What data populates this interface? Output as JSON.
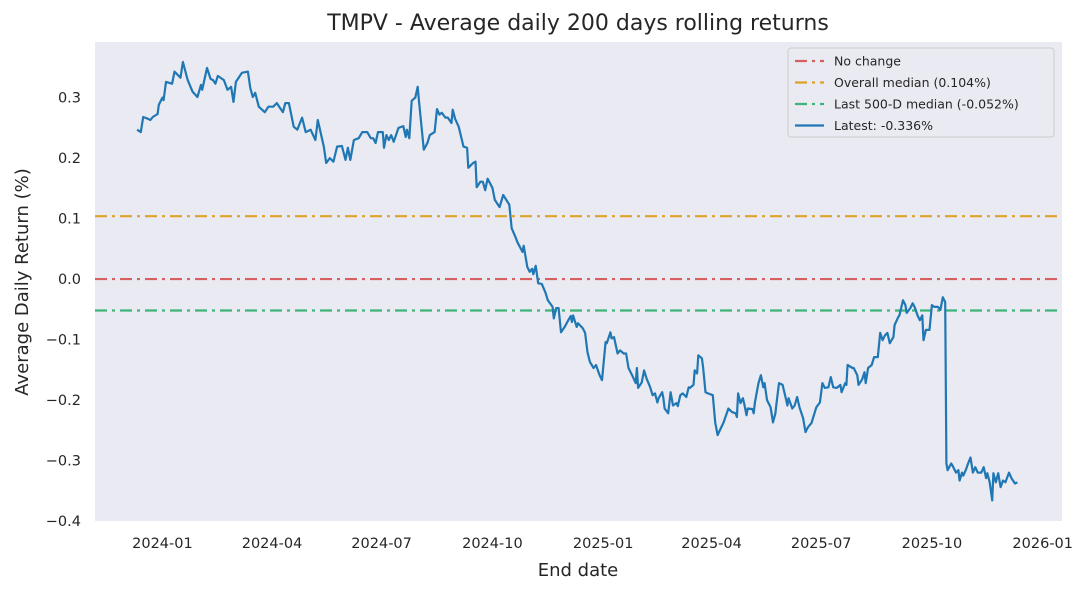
{
  "chart_data": {
    "type": "line",
    "title": "TMPV - Average daily 200 days rolling returns",
    "xlabel": "End date",
    "ylabel": "Average Daily Return (%)",
    "xlim": [
      "2023-11-06",
      "2026-01-17"
    ],
    "ylim": [
      -0.4,
      0.392
    ],
    "grid": false,
    "legend_position": "top-right",
    "x_ticks": [
      {
        "date": "2024-01-01",
        "label": "2024-01"
      },
      {
        "date": "2024-04-01",
        "label": "2024-04"
      },
      {
        "date": "2024-07-01",
        "label": "2024-07"
      },
      {
        "date": "2024-10-01",
        "label": "2024-10"
      },
      {
        "date": "2025-01-01",
        "label": "2025-01"
      },
      {
        "date": "2025-04-01",
        "label": "2025-04"
      },
      {
        "date": "2025-07-01",
        "label": "2025-07"
      },
      {
        "date": "2025-10-01",
        "label": "2025-10"
      },
      {
        "date": "2026-01-01",
        "label": "2026-01"
      }
    ],
    "y_ticks": [
      {
        "value": 0.3,
        "label": "0.3"
      },
      {
        "value": 0.2,
        "label": "0.2"
      },
      {
        "value": 0.1,
        "label": "0.1"
      },
      {
        "value": 0.0,
        "label": "0.0"
      },
      {
        "value": -0.1,
        "label": "−0.1"
      },
      {
        "value": -0.2,
        "label": "−0.2"
      },
      {
        "value": -0.3,
        "label": "−0.3"
      },
      {
        "value": -0.4,
        "label": "−0.4"
      }
    ],
    "hlines": [
      {
        "name": "No change",
        "value": 0.0,
        "color": "#d65f5f",
        "style": "dashdot"
      },
      {
        "name": "Overall median (0.104%)",
        "value": 0.104,
        "color": "#dea32a",
        "style": "dashdot"
      },
      {
        "name": "Last 500-D median (-0.052%)",
        "value": -0.052,
        "color": "#3fb47a",
        "style": "dashdot"
      }
    ],
    "series": [
      {
        "name": "Latest: -0.336%",
        "color": "#1f77b4",
        "x": [
          "2023-12-11",
          "2023-12-14",
          "2023-12-16",
          "2023-12-20",
          "2023-12-22",
          "2023-12-24",
          "2023-12-28",
          "2023-12-29",
          "2024-01-01",
          "2024-01-02",
          "2024-01-04",
          "2024-01-09",
          "2024-01-11",
          "2024-01-16",
          "2024-01-18",
          "2024-01-22",
          "2024-01-26",
          "2024-01-30",
          "2024-02-02",
          "2024-02-03",
          "2024-02-07",
          "2024-02-10",
          "2024-02-12",
          "2024-02-14",
          "2024-02-16",
          "2024-02-21",
          "2024-02-24",
          "2024-02-27",
          "2024-02-29",
          "2024-03-02",
          "2024-03-07",
          "2024-03-12",
          "2024-03-14",
          "2024-03-16",
          "2024-03-18",
          "2024-03-21",
          "2024-03-26",
          "2024-03-29",
          "2024-04-02",
          "2024-04-05",
          "2024-04-10",
          "2024-04-12",
          "2024-04-15",
          "2024-04-19",
          "2024-04-22",
          "2024-04-26",
          "2024-04-29",
          "2024-05-03",
          "2024-05-07",
          "2024-05-09",
          "2024-05-14",
          "2024-05-16",
          "2024-05-19",
          "2024-05-22",
          "2024-05-25",
          "2024-05-29",
          "2024-06-01",
          "2024-06-03",
          "2024-06-05",
          "2024-06-08",
          "2024-06-12",
          "2024-06-15",
          "2024-06-19",
          "2024-06-22",
          "2024-06-24",
          "2024-06-26",
          "2024-06-28",
          "2024-07-02",
          "2024-07-03",
          "2024-07-05",
          "2024-07-07",
          "2024-07-09",
          "2024-07-11",
          "2024-07-15",
          "2024-07-19",
          "2024-07-21",
          "2024-07-22",
          "2024-07-24",
          "2024-07-26",
          "2024-07-29",
          "2024-07-31",
          "2024-08-01",
          "2024-08-05",
          "2024-08-08",
          "2024-08-10",
          "2024-08-14",
          "2024-08-16",
          "2024-08-18",
          "2024-08-20",
          "2024-08-23",
          "2024-08-25",
          "2024-08-28",
          "2024-08-29",
          "2024-08-31",
          "2024-09-03",
          "2024-09-07",
          "2024-09-10",
          "2024-09-11",
          "2024-09-15",
          "2024-09-17",
          "2024-09-18",
          "2024-09-21",
          "2024-09-23",
          "2024-09-25",
          "2024-09-27",
          "2024-10-01",
          "2024-10-03",
          "2024-10-07",
          "2024-10-10",
          "2024-10-15",
          "2024-10-17",
          "2024-10-20",
          "2024-10-22",
          "2024-10-26",
          "2024-10-27",
          "2024-10-30",
          "2024-11-01",
          "2024-11-03",
          "2024-11-04",
          "2024-11-06",
          "2024-11-08",
          "2024-11-11",
          "2024-11-14",
          "2024-11-16",
          "2024-11-20",
          "2024-11-21",
          "2024-11-23",
          "2024-11-25",
          "2024-11-27",
          "2024-11-30",
          "2024-12-03",
          "2024-12-05",
          "2024-12-06",
          "2024-12-07",
          "2024-12-10",
          "2024-12-11",
          "2024-12-15",
          "2024-12-17",
          "2024-12-19",
          "2024-12-21",
          "2024-12-24",
          "2024-12-26",
          "2024-12-29",
          "2024-12-31",
          "2025-01-03",
          "2025-01-04",
          "2025-01-07",
          "2025-01-08",
          "2025-01-10",
          "2025-01-13",
          "2025-01-15",
          "2025-01-18",
          "2025-01-20",
          "2025-01-22",
          "2025-01-25",
          "2025-01-28",
          "2025-01-29",
          "2025-01-30",
          "2025-02-02",
          "2025-02-04",
          "2025-02-06",
          "2025-02-09",
          "2025-02-11",
          "2025-02-13",
          "2025-02-15",
          "2025-02-16",
          "2025-02-19",
          "2025-02-20",
          "2025-02-21",
          "2025-02-24",
          "2025-02-26",
          "2025-02-28",
          "2025-03-03",
          "2025-03-04",
          "2025-03-06",
          "2025-03-08",
          "2025-03-11",
          "2025-03-13",
          "2025-03-14",
          "2025-03-17",
          "2025-03-18",
          "2025-03-20",
          "2025-03-21",
          "2025-03-24",
          "2025-03-25",
          "2025-03-27",
          "2025-03-29",
          "2025-04-02",
          "2025-04-04",
          "2025-04-06",
          "2025-04-11",
          "2025-04-15",
          "2025-04-18",
          "2025-04-21",
          "2025-04-22",
          "2025-04-23",
          "2025-04-25",
          "2025-04-27",
          "2025-04-28",
          "2025-04-30",
          "2025-05-01",
          "2025-05-05",
          "2025-05-06",
          "2025-05-07",
          "2025-05-10",
          "2025-05-12",
          "2025-05-14",
          "2025-05-15",
          "2025-05-17",
          "2025-05-20",
          "2025-05-22",
          "2025-05-24",
          "2025-05-25",
          "2025-05-27",
          "2025-05-30",
          "2025-06-02",
          "2025-06-03",
          "2025-06-04",
          "2025-06-07",
          "2025-06-09",
          "2025-06-11",
          "2025-06-13",
          "2025-06-16",
          "2025-06-18",
          "2025-06-20",
          "2025-06-23",
          "2025-06-27",
          "2025-06-30",
          "2025-07-02",
          "2025-07-04",
          "2025-07-07",
          "2025-07-09",
          "2025-07-11",
          "2025-07-14",
          "2025-07-17",
          "2025-07-18",
          "2025-07-21",
          "2025-07-22",
          "2025-07-23",
          "2025-07-27",
          "2025-07-28",
          "2025-07-31",
          "2025-08-01",
          "2025-08-04",
          "2025-08-06",
          "2025-08-07",
          "2025-08-09",
          "2025-08-12",
          "2025-08-14",
          "2025-08-17",
          "2025-08-19",
          "2025-08-21",
          "2025-08-23",
          "2025-08-25",
          "2025-08-27",
          "2025-08-30",
          "2025-08-31",
          "2025-09-03",
          "2025-09-04",
          "2025-09-07",
          "2025-09-09",
          "2025-09-10",
          "2025-09-13",
          "2025-09-15",
          "2025-09-17",
          "2025-09-19",
          "2025-09-21",
          "2025-09-23",
          "2025-09-24",
          "2025-09-26",
          "2025-09-29",
          "2025-10-01",
          "2025-10-03",
          "2025-10-06",
          "2025-10-08",
          "2025-10-10",
          "2025-10-12",
          "2025-10-13",
          "2025-10-14",
          "2025-10-17",
          "2025-10-18",
          "2025-10-21",
          "2025-10-23",
          "2025-10-24",
          "2025-10-26",
          "2025-10-27",
          "2025-10-29",
          "2025-10-31",
          "2025-11-02",
          "2025-11-04",
          "2025-11-06",
          "2025-11-08",
          "2025-11-11",
          "2025-11-13",
          "2025-11-15",
          "2025-11-16",
          "2025-11-18",
          "2025-11-20",
          "2025-11-21",
          "2025-11-23",
          "2025-11-25",
          "2025-11-27",
          "2025-11-29",
          "2025-12-01",
          "2025-12-04",
          "2025-12-06",
          "2025-12-09",
          "2025-12-11"
        ],
        "y": [
          0.247,
          0.243,
          0.268,
          0.265,
          0.263,
          0.268,
          0.273,
          0.288,
          0.3,
          0.296,
          0.326,
          0.323,
          0.343,
          0.333,
          0.359,
          0.329,
          0.31,
          0.301,
          0.321,
          0.313,
          0.349,
          0.331,
          0.329,
          0.323,
          0.336,
          0.329,
          0.313,
          0.318,
          0.293,
          0.326,
          0.341,
          0.343,
          0.316,
          0.301,
          0.308,
          0.285,
          0.276,
          0.285,
          0.285,
          0.291,
          0.276,
          0.291,
          0.291,
          0.252,
          0.247,
          0.267,
          0.243,
          0.247,
          0.23,
          0.263,
          0.219,
          0.192,
          0.2,
          0.194,
          0.219,
          0.22,
          0.197,
          0.217,
          0.197,
          0.23,
          0.233,
          0.243,
          0.243,
          0.233,
          0.233,
          0.225,
          0.243,
          0.243,
          0.217,
          0.238,
          0.23,
          0.238,
          0.227,
          0.25,
          0.253,
          0.235,
          0.247,
          0.233,
          0.295,
          0.3,
          0.318,
          0.296,
          0.214,
          0.225,
          0.238,
          0.243,
          0.281,
          0.272,
          0.275,
          0.267,
          0.267,
          0.258,
          0.28,
          0.265,
          0.252,
          0.219,
          0.217,
          0.184,
          0.192,
          0.194,
          0.152,
          0.161,
          0.161,
          0.147,
          0.166,
          0.151,
          0.131,
          0.119,
          0.139,
          0.123,
          0.084,
          0.07,
          0.06,
          0.045,
          0.055,
          0.02,
          0.012,
          0.017,
          0.008,
          0.022,
          -0.007,
          -0.008,
          -0.022,
          -0.035,
          -0.046,
          -0.065,
          -0.048,
          -0.048,
          -0.088,
          -0.079,
          -0.068,
          -0.061,
          -0.071,
          -0.06,
          -0.079,
          -0.073,
          -0.081,
          -0.089,
          -0.121,
          -0.137,
          -0.147,
          -0.142,
          -0.159,
          -0.167,
          -0.104,
          -0.106,
          -0.088,
          -0.098,
          -0.096,
          -0.123,
          -0.118,
          -0.123,
          -0.123,
          -0.147,
          -0.159,
          -0.172,
          -0.147,
          -0.18,
          -0.171,
          -0.151,
          -0.164,
          -0.179,
          -0.192,
          -0.189,
          -0.204,
          -0.197,
          -0.187,
          -0.197,
          -0.214,
          -0.222,
          -0.187,
          -0.209,
          -0.205,
          -0.21,
          -0.192,
          -0.189,
          -0.195,
          -0.179,
          -0.18,
          -0.175,
          -0.151,
          -0.156,
          -0.126,
          -0.131,
          -0.146,
          -0.187,
          -0.189,
          -0.192,
          -0.237,
          -0.258,
          -0.237,
          -0.214,
          -0.22,
          -0.222,
          -0.228,
          -0.189,
          -0.205,
          -0.197,
          -0.205,
          -0.225,
          -0.214,
          -0.215,
          -0.222,
          -0.204,
          -0.172,
          -0.159,
          -0.179,
          -0.172,
          -0.2,
          -0.212,
          -0.237,
          -0.222,
          -0.204,
          -0.172,
          -0.175,
          -0.2,
          -0.209,
          -0.197,
          -0.214,
          -0.209,
          -0.195,
          -0.212,
          -0.23,
          -0.253,
          -0.245,
          -0.238,
          -0.212,
          -0.204,
          -0.172,
          -0.18,
          -0.179,
          -0.162,
          -0.179,
          -0.18,
          -0.175,
          -0.187,
          -0.172,
          -0.175,
          -0.142,
          -0.147,
          -0.147,
          -0.159,
          -0.175,
          -0.166,
          -0.154,
          -0.172,
          -0.147,
          -0.142,
          -0.129,
          -0.129,
          -0.089,
          -0.101,
          -0.093,
          -0.089,
          -0.106,
          -0.096,
          -0.076,
          -0.063,
          -0.06,
          -0.035,
          -0.043,
          -0.056,
          -0.048,
          -0.04,
          -0.048,
          -0.06,
          -0.068,
          -0.06,
          -0.101,
          -0.084,
          -0.084,
          -0.043,
          -0.046,
          -0.046,
          -0.051,
          -0.03,
          -0.038,
          -0.305,
          -0.316,
          -0.305,
          -0.308,
          -0.32,
          -0.316,
          -0.333,
          -0.32,
          -0.325,
          -0.316,
          -0.305,
          -0.295,
          -0.32,
          -0.311,
          -0.32,
          -0.32,
          -0.311,
          -0.329,
          -0.321,
          -0.336,
          -0.366,
          -0.321,
          -0.336,
          -0.321,
          -0.344,
          -0.333,
          -0.336,
          -0.32,
          -0.329,
          -0.338,
          -0.336
        ]
      }
    ],
    "legend": [
      {
        "label": "No change",
        "color": "#d65f5f",
        "style": "dashdot"
      },
      {
        "label": "Overall median (0.104%)",
        "color": "#dea32a",
        "style": "dashdot"
      },
      {
        "label": "Last 500-D median (-0.052%)",
        "color": "#3fb47a",
        "style": "dashdot"
      },
      {
        "label": "Latest: -0.336%",
        "color": "#1f77b4",
        "style": "solid"
      }
    ],
    "colors": {
      "plot_background": "#eaeaf2",
      "text": "#262626"
    }
  }
}
